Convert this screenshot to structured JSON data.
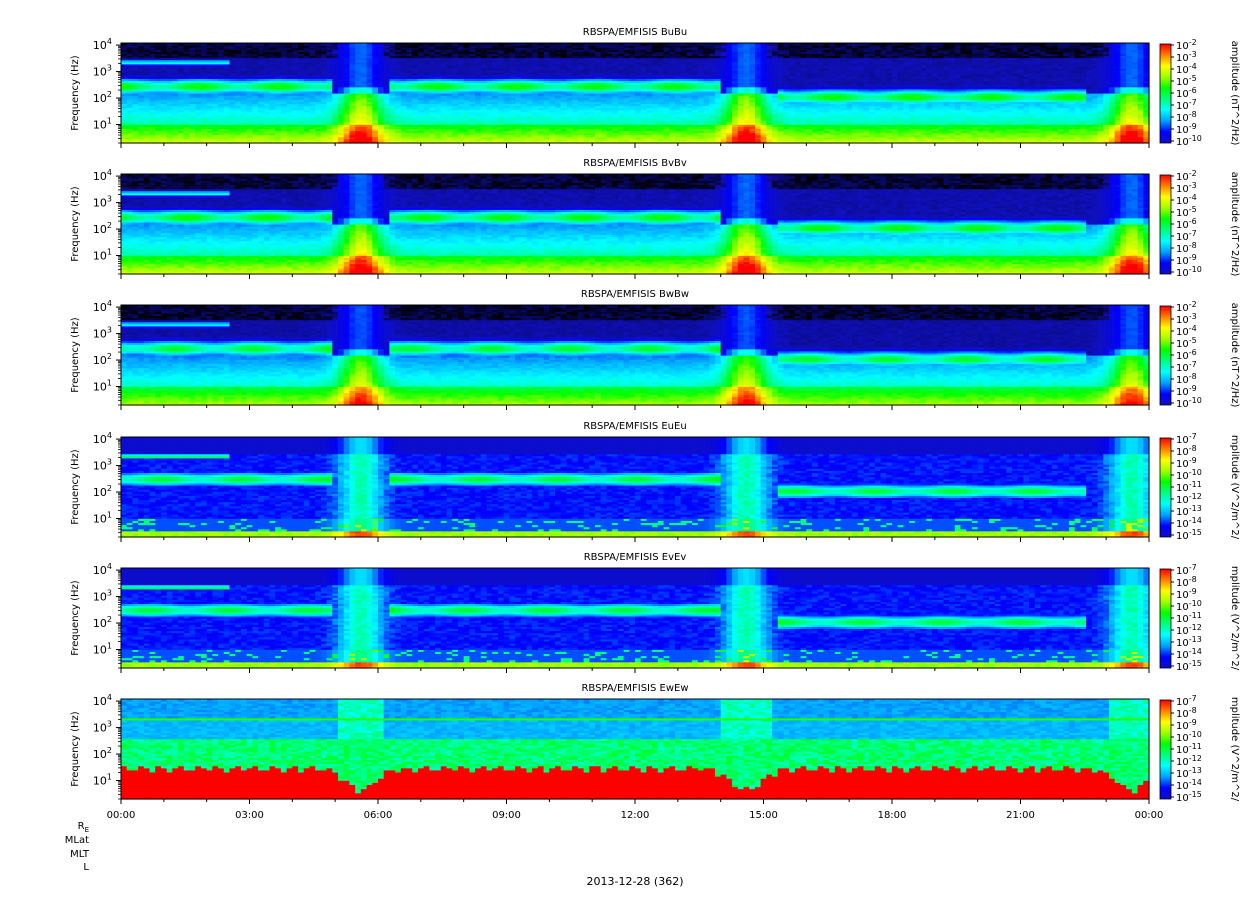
{
  "chart_data": {
    "type": "heatmap",
    "date_label": "2013-12-28 (362)",
    "x_tick_labels": [
      "00:00",
      "03:00",
      "06:00",
      "09:00",
      "12:00",
      "15:00",
      "18:00",
      "21:00",
      "00:00"
    ],
    "x_range_hours": [
      0,
      24
    ],
    "ephemeris_labels": [
      "R_E",
      "MLat",
      "MLT",
      "L"
    ],
    "y_scale": "log",
    "y_range_hz": [
      2,
      12000
    ],
    "y_tick_bases": [
      "10",
      "10",
      "10",
      "10"
    ],
    "y_tick_exponents": [
      "1",
      "2",
      "3",
      "4"
    ],
    "y_tick_values": [
      10,
      100,
      1000,
      10000
    ],
    "panels": [
      {
        "title": "RBSPA/EMFISIS  BuBu",
        "ylabel": "Frequency (Hz)",
        "cbar_label": "amplitude (nT^2/Hz)",
        "cbar_base": "10",
        "cbar_exponents": [
          "-2",
          "-3",
          "-4",
          "-5",
          "-6",
          "-7",
          "-8",
          "-9",
          "-10"
        ],
        "kind": "B",
        "variant": 0
      },
      {
        "title": "RBSPA/EMFISIS  BvBv",
        "ylabel": "Frequency (Hz)",
        "cbar_label": "amplitude (nT^2/Hz)",
        "cbar_base": "10",
        "cbar_exponents": [
          "-2",
          "-3",
          "-4",
          "-5",
          "-6",
          "-7",
          "-8",
          "-9",
          "-10"
        ],
        "kind": "B",
        "variant": 1
      },
      {
        "title": "RBSPA/EMFISIS  BwBw",
        "ylabel": "Frequency (Hz)",
        "cbar_label": "amplitude (nT^2/Hz)",
        "cbar_base": "10",
        "cbar_exponents": [
          "-2",
          "-3",
          "-4",
          "-5",
          "-6",
          "-7",
          "-8",
          "-9",
          "-10"
        ],
        "kind": "Bw",
        "variant": 2
      },
      {
        "title": "RBSPA/EMFISIS  EuEu",
        "ylabel": "Frequency (Hz)",
        "cbar_label": "mplitude (V^2/m^2/",
        "cbar_base": "10",
        "cbar_exponents": [
          "-7",
          "-8",
          "-9",
          "-10",
          "-11",
          "-12",
          "-13",
          "-14",
          "-15"
        ],
        "kind": "E",
        "variant": 3
      },
      {
        "title": "RBSPA/EMFISIS  EvEv",
        "ylabel": "Frequency (Hz)",
        "cbar_label": "mplitude (V^2/m^2/",
        "cbar_base": "10",
        "cbar_exponents": [
          "-7",
          "-8",
          "-9",
          "-10",
          "-11",
          "-12",
          "-13",
          "-14",
          "-15"
        ],
        "kind": "E",
        "variant": 4
      },
      {
        "title": "RBSPA/EMFISIS  EwEw",
        "ylabel": "Frequency (Hz)",
        "cbar_label": "mplitude (V^2/m^2/",
        "cbar_base": "10",
        "cbar_exponents": [
          "-7",
          "-8",
          "-9",
          "-10",
          "-11",
          "-12",
          "-13",
          "-14",
          "-15"
        ],
        "kind": "Ew",
        "variant": 5
      }
    ],
    "colormap": [
      "#000000",
      "#1010c0",
      "#0000ff",
      "#00a0ff",
      "#00ffff",
      "#00ff80",
      "#00ff00",
      "#a0ff00",
      "#ffff00",
      "#ff8000",
      "#ff0000"
    ]
  }
}
